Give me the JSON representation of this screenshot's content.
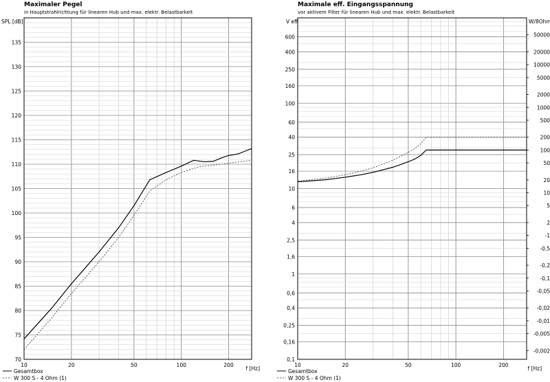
{
  "chart_data": [
    {
      "type": "line",
      "title": "Maximaler Pegel",
      "subtitle": "in Hauptstrahlrichtung für linearen Hub und max. elektr. Belastbarkeit",
      "ylabel": "SPL [dB]",
      "xlabel": "f [Hz]",
      "xscale": "log",
      "xlim": [
        10,
        280
      ],
      "ylim": [
        70,
        140
      ],
      "xticks": [
        10,
        20,
        50,
        100,
        200
      ],
      "xtick_labels": [
        "10",
        "20",
        "50",
        "100",
        "200"
      ],
      "yticks": [
        70,
        75,
        80,
        85,
        90,
        95,
        100,
        105,
        110,
        115,
        120,
        125,
        130,
        135
      ],
      "ytick_labels": [
        "70",
        "75",
        "80",
        "85",
        "90",
        "95",
        "100",
        "105",
        "110",
        "115",
        "120",
        "125",
        "130",
        "135"
      ],
      "grid": true,
      "legend_position": "bottom-left",
      "series": [
        {
          "name": "Gesamtbox",
          "color": "#000000",
          "style": "solid",
          "x": [
            10,
            15,
            20,
            30,
            40,
            50,
            63,
            80,
            100,
            120,
            140,
            160,
            180,
            200,
            230,
            260,
            280
          ],
          "y": [
            74.2,
            80.5,
            85.5,
            92.0,
            97.0,
            101.5,
            106.8,
            108.3,
            109.6,
            110.8,
            110.5,
            110.6,
            111.3,
            111.8,
            112.1,
            112.8,
            113.2
          ]
        },
        {
          "name": "W 300 S - 4 Ohm (1)",
          "color": "#555555",
          "style": "dashed",
          "x": [
            10,
            15,
            20,
            30,
            40,
            50,
            63,
            80,
            100,
            130,
            160,
            200,
            280
          ],
          "y": [
            72.0,
            78.5,
            83.5,
            90.0,
            95.0,
            99.5,
            104.5,
            106.8,
            108.3,
            109.5,
            109.8,
            110.2,
            110.8
          ]
        }
      ]
    },
    {
      "type": "line",
      "title": "Maximale eff. Eingangsspannung",
      "subtitle": "vor aktivem Filter für linearen Hub und max. elektr. Belastbarkeit",
      "ylabel": "V eff",
      "y2label": "W/8Ohm",
      "xlabel": "f [Hz]",
      "xscale": "log",
      "yscale": "log",
      "xlim": [
        10,
        280
      ],
      "ylim": [
        0.1,
        1000
      ],
      "xticks": [
        10,
        20,
        50,
        100,
        200
      ],
      "xtick_labels": [
        "10",
        "20",
        "50",
        "100",
        "200"
      ],
      "yticks": [
        0.1,
        0.16,
        0.25,
        0.4,
        0.6,
        1,
        1.6,
        2.5,
        4,
        6,
        10,
        16,
        25,
        40,
        60,
        100,
        160,
        250,
        400,
        600
      ],
      "ytick_labels": [
        "0,1",
        "0,16",
        "0,25",
        "0,4",
        "0,6",
        "1",
        "1,6",
        "2,5",
        "4",
        "6",
        "10",
        "16",
        "25",
        "40",
        "60",
        "100",
        "160",
        "250",
        "400",
        "600"
      ],
      "y2ticks": [
        0.002,
        0.005,
        0.01,
        0.02,
        0.05,
        0.1,
        0.2,
        0.5,
        1,
        2,
        5,
        10,
        20,
        50,
        100,
        200,
        500,
        1000,
        2000,
        5000,
        10000,
        20000,
        50000
      ],
      "y2tick_labels": [
        "-0,002",
        "-0,005",
        "-0,01",
        "-0,02",
        "-0,05",
        "-0,1",
        "-0,2",
        "-0,5",
        "-1",
        "2",
        "5",
        "10",
        "20",
        "50",
        "100",
        "200",
        "500",
        "1000",
        "2000",
        "5000",
        "10000",
        "20000",
        "50000"
      ],
      "grid": true,
      "legend_position": "bottom-left",
      "series": [
        {
          "name": "Gesamtbox",
          "color": "#000000",
          "style": "solid",
          "x": [
            10,
            15,
            20,
            25,
            30,
            40,
            50,
            55,
            60,
            65,
            100,
            200,
            280
          ],
          "y": [
            12.0,
            12.7,
            13.6,
            14.5,
            15.5,
            17.8,
            20.6,
            22.2,
            24.5,
            28.3,
            28.3,
            28.3,
            28.3
          ]
        },
        {
          "name": "W 300 S - 4 Ohm (1)",
          "color": "#555555",
          "style": "dashed",
          "x": [
            10,
            15,
            20,
            25,
            30,
            40,
            50,
            55,
            60,
            65,
            100,
            200,
            280
          ],
          "y": [
            12.2,
            13.3,
            14.5,
            16.0,
            17.5,
            21.5,
            26.5,
            29.5,
            33.5,
            40.0,
            40.0,
            40.0,
            40.0
          ]
        }
      ]
    }
  ]
}
